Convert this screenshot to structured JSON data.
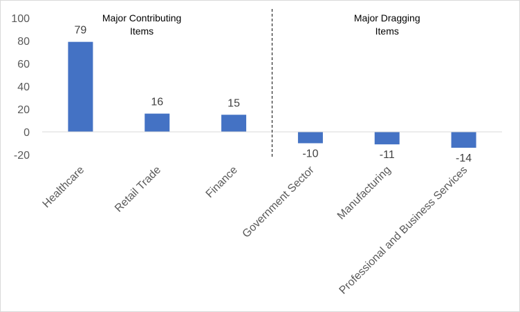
{
  "chart_data": {
    "type": "bar",
    "categories": [
      "Healthcare",
      "Retail Trade",
      "Finance",
      "Government Sector",
      "Manufacturing",
      "Professional and Business Services"
    ],
    "values": [
      79,
      16,
      15,
      -10,
      -11,
      -14
    ],
    "data_labels": [
      "79",
      "16",
      "15",
      "-10",
      "-11",
      "-14"
    ],
    "ylim": [
      -20,
      100
    ],
    "yticks": [
      "-20",
      "0",
      "20",
      "40",
      "60",
      "80",
      "100"
    ],
    "ytick_values": [
      -20,
      0,
      20,
      40,
      60,
      80,
      100
    ],
    "grid": false,
    "bar_color": "#4472c4",
    "group_labels": [
      {
        "line1": "Major Contributing",
        "line2": "Items"
      },
      {
        "line1": "Major Dragging",
        "line2": "Items"
      }
    ],
    "divider_after_index": 2
  }
}
